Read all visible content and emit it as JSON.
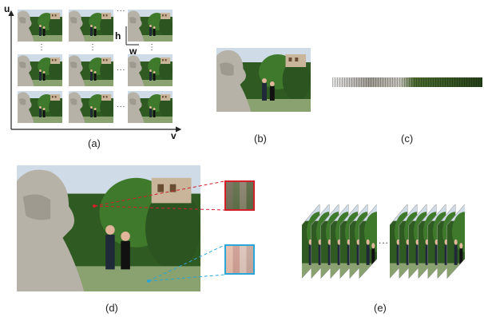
{
  "panels": {
    "a": {
      "label": "(a)",
      "u_axis": "u",
      "v_axis": "v",
      "h_label": "h",
      "w_label": "w",
      "dots_h": "...",
      "dots_v": "⋮"
    },
    "b": {
      "label": "(b)"
    },
    "c": {
      "label": "(c)"
    },
    "d": {
      "label": "(d)"
    },
    "e": {
      "label": "(e)",
      "dots": "..."
    }
  },
  "colors": {
    "zoom_red": "#d21f2b",
    "zoom_blue": "#2aa7d8",
    "sky": "#cfdbe6",
    "foliage": "#3b6a2b",
    "stone": "#b9b5ab"
  },
  "icons": [
    "photo-icon"
  ]
}
